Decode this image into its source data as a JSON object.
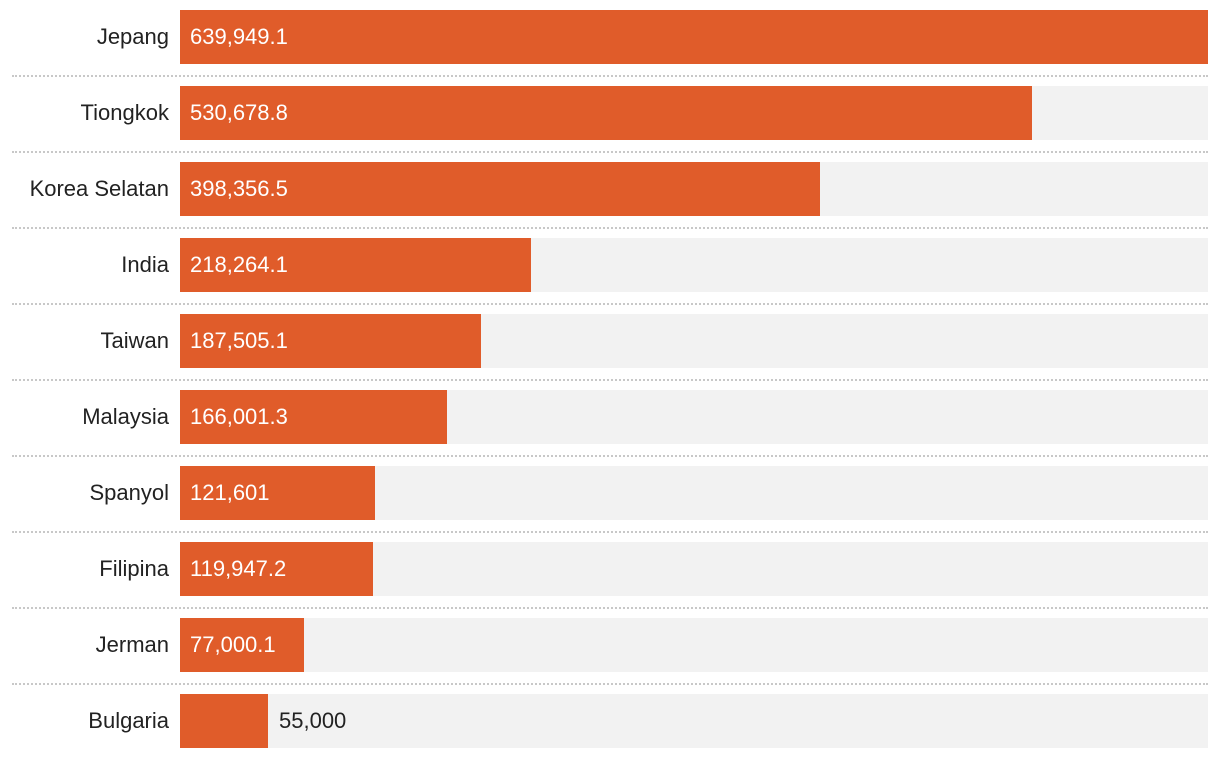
{
  "chart_data": {
    "type": "bar",
    "orientation": "horizontal",
    "title": "",
    "xlabel": "",
    "ylabel": "",
    "xlim": [
      0,
      639949.1
    ],
    "categories": [
      "Jepang",
      "Tiongkok",
      "Korea Selatan",
      "India",
      "Taiwan",
      "Malaysia",
      "Spanyol",
      "Filipina",
      "Jerman",
      "Bulgaria"
    ],
    "values": [
      639949.1,
      530678.8,
      398356.5,
      218264.1,
      187505.1,
      166001.3,
      121601,
      119947.2,
      77000.1,
      55000
    ],
    "value_labels": [
      "639,949.1",
      "530,678.8",
      "398,356.5",
      "218,264.1",
      "187,505.1",
      "166,001.3",
      "121,601",
      "119,947.2",
      "77,000.1",
      "55,000"
    ],
    "colors": {
      "bar": "#e05c2a",
      "track": "#f2f2f2",
      "label_inside": "#ffffff",
      "label_outside": "#222222"
    }
  }
}
